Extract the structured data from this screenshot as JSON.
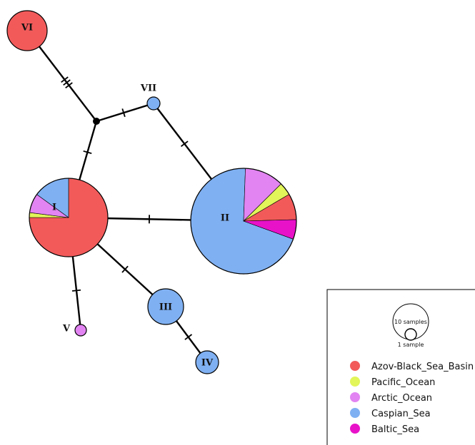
{
  "colors": {
    "Azov-Black_Sea_Basin": "#f25a5a",
    "Pacific_Ocean": "#e2f559",
    "Arctic_Ocean": "#e284f2",
    "Caspian_Sea": "#7fb0f2",
    "Baltic_Sea": "#e812c9"
  },
  "nodes": [
    {
      "id": "I",
      "label": "I",
      "pie": [
        [
          "Azov-Black_Sea_Basin",
          0.75
        ],
        [
          "Pacific_Ocean",
          0.02
        ],
        [
          "Arctic_Ocean",
          0.08
        ],
        [
          "Caspian_Sea",
          0.15
        ]
      ]
    },
    {
      "id": "II",
      "label": "II",
      "pie": [
        [
          "Caspian_Sea",
          0.7
        ],
        [
          "Arctic_Ocean",
          0.12
        ],
        [
          "Pacific_Ocean",
          0.04
        ],
        [
          "Azov-Black_Sea_Basin",
          0.08
        ],
        [
          "Baltic_Sea",
          0.06
        ]
      ]
    },
    {
      "id": "III",
      "label": "III",
      "pie": [
        [
          "Caspian_Sea",
          1
        ]
      ]
    },
    {
      "id": "IV",
      "label": "IV",
      "pie": [
        [
          "Caspian_Sea",
          1
        ]
      ]
    },
    {
      "id": "V",
      "label": "V",
      "pie": [
        [
          "Arctic_Ocean",
          1
        ]
      ]
    },
    {
      "id": "VI",
      "label": "VI",
      "pie": [
        [
          "Azov-Black_Sea_Basin",
          1
        ]
      ]
    },
    {
      "id": "VII",
      "label": "VII",
      "pie": [
        [
          "Caspian_Sea",
          1
        ]
      ]
    },
    {
      "id": "mv",
      "label": "",
      "median_vector": true
    }
  ],
  "edges": [
    {
      "from": "VI",
      "to": "mv",
      "mutations": 3
    },
    {
      "from": "mv",
      "to": "VII",
      "mutations": 1
    },
    {
      "from": "mv",
      "to": "I",
      "mutations": 1
    },
    {
      "from": "VII",
      "to": "II",
      "mutations": 1
    },
    {
      "from": "I",
      "to": "II",
      "mutations": 1
    },
    {
      "from": "I",
      "to": "III",
      "mutations": 1
    },
    {
      "from": "I",
      "to": "V",
      "mutations": 1
    },
    {
      "from": "III",
      "to": "IV",
      "mutations": 1
    }
  ],
  "legend": {
    "scale_large": "10 samples",
    "scale_small": "1 sample",
    "items": [
      "Azov-Black_Sea_Basin",
      "Pacific_Ocean",
      "Arctic_Ocean",
      "Caspian_Sea",
      "Baltic_Sea"
    ]
  }
}
